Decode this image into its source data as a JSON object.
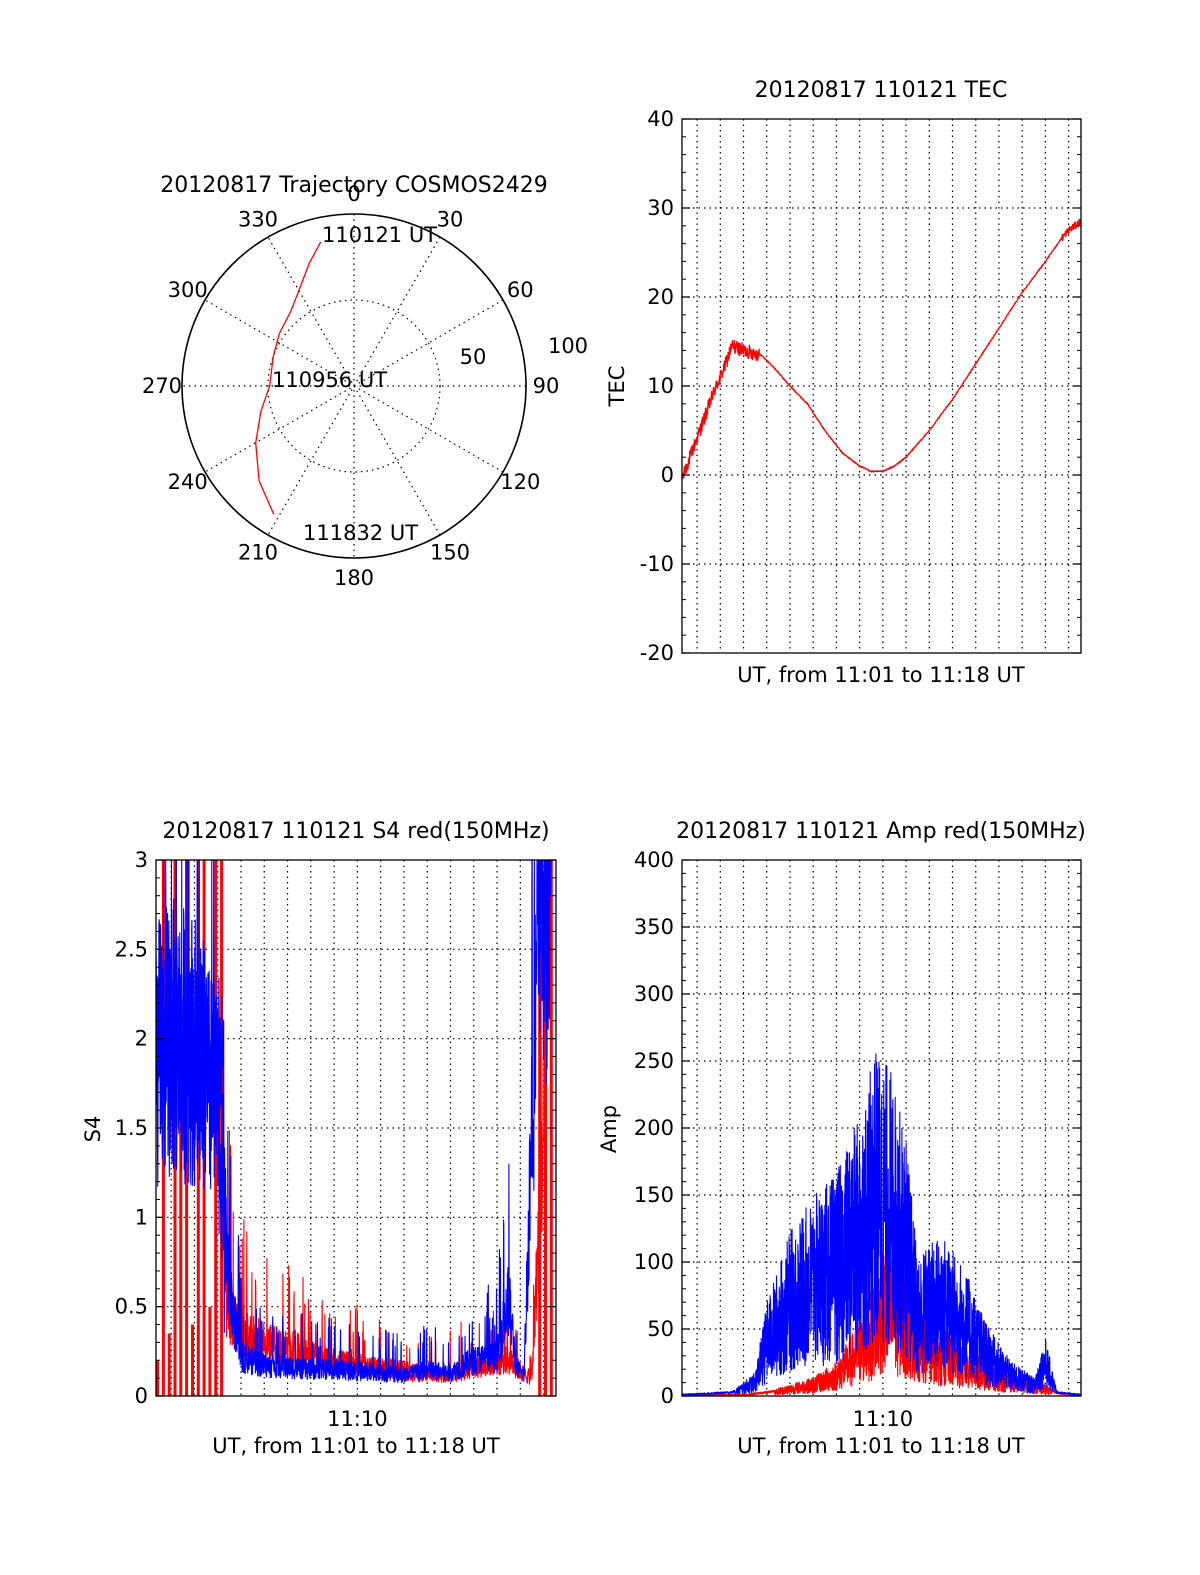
{
  "colors": {
    "red": "#ff0000",
    "blue": "#0000ff",
    "axis": "#000000",
    "background": "#ffffff"
  },
  "chart_data": [
    {
      "type": "scatter",
      "projection": "polar",
      "title": "20120817 Trajectory COSMOS2429",
      "azimuth_labels": [
        "0",
        "30",
        "60",
        "90",
        "120",
        "150",
        "180",
        "210",
        "240",
        "270",
        "300",
        "330"
      ],
      "radial_ticks": [
        "50",
        "100"
      ],
      "radial_range": [
        0,
        100
      ],
      "series": [
        {
          "color": "#ff0000",
          "azimuth_deg": [
            347,
            340,
            332,
            320,
            305,
            290,
            270,
            255,
            240,
            225,
            212
          ],
          "radius": [
            86,
            76,
            66,
            57,
            53,
            50,
            49,
            56,
            66,
            78,
            88
          ]
        }
      ],
      "annotations": [
        "110121 UT",
        "110956 UT",
        "111832 UT"
      ]
    },
    {
      "type": "line",
      "title": "20120817 110121 TEC",
      "xlabel": "UT, from 11:01 to 11:18 UT",
      "ylabel": "TEC",
      "xlim": [
        "11:01:21",
        "11:18:32"
      ],
      "ylim": [
        -20,
        40
      ],
      "yticks": [
        "-20",
        "-10",
        "0",
        "10",
        "20",
        "30",
        "40"
      ],
      "grid": true,
      "series": [
        {
          "color": "#ff0000",
          "x": [
            "11:01:21",
            "11:01:50",
            "11:02:20",
            "11:02:45",
            "11:03:10",
            "11:03:30",
            "11:04:00",
            "11:04:45",
            "11:05:20",
            "11:06:00",
            "11:06:45",
            "11:07:30",
            "11:08:15",
            "11:09:00",
            "11:09:30",
            "11:10:00",
            "11:10:30",
            "11:11:00",
            "11:12:00",
            "11:13:00",
            "11:14:00",
            "11:15:00",
            "11:16:00",
            "11:17:00",
            "11:17:40",
            "11:18:00",
            "11:18:32"
          ],
          "y": [
            -0.5,
            3.0,
            6.5,
            9.5,
            12.0,
            14.5,
            14.0,
            13.5,
            12.0,
            10.0,
            8.0,
            5.0,
            2.5,
            1.0,
            0.4,
            0.4,
            1.0,
            2.0,
            5.0,
            8.5,
            12.5,
            16.5,
            20.5,
            24.0,
            26.5,
            27.5,
            28.5
          ]
        }
      ]
    },
    {
      "type": "line",
      "title": "20120817 110121 S4 red(150MHz)",
      "xlabel": "UT, from 11:01 to 11:18 UT",
      "ylabel": "S4",
      "xlim": [
        "11:01:21",
        "11:18:32"
      ],
      "xticks": [
        "11:10"
      ],
      "ylim": [
        0,
        3
      ],
      "yticks": [
        "0",
        "0.5",
        "1",
        "1.5",
        "2",
        "2.5",
        "3"
      ],
      "grid": true,
      "series": [
        {
          "color": "#ff0000",
          "x": [
            "11:04:20",
            "11:04:50",
            "11:05:30",
            "11:06:30",
            "11:07:30",
            "11:08:30",
            "11:09:30",
            "11:10:30",
            "11:11:30",
            "11:12:30",
            "11:13:30",
            "11:14:30",
            "11:15:30",
            "11:16:30",
            "11:17:10",
            "11:17:30",
            "11:18:00"
          ],
          "y": [
            0.55,
            0.38,
            0.32,
            0.28,
            0.25,
            0.2,
            0.18,
            0.16,
            0.15,
            0.13,
            0.12,
            0.14,
            0.18,
            0.2,
            0.12,
            0.1,
            1.5
          ]
        },
        {
          "color": "#0000ff",
          "x": [
            "11:01:21",
            "11:02:00",
            "11:03:00",
            "11:04:00",
            "11:04:30",
            "11:05:00",
            "11:06:00",
            "11:07:00",
            "11:08:00",
            "11:09:00",
            "11:10:00",
            "11:11:00",
            "11:12:00",
            "11:13:00",
            "11:14:00",
            "11:15:00",
            "11:16:00",
            "11:16:30",
            "11:16:50",
            "11:17:10",
            "11:17:30",
            "11:17:50",
            "11:18:20"
          ],
          "y": [
            1.9,
            2.0,
            1.95,
            1.6,
            0.6,
            0.22,
            0.17,
            0.16,
            0.15,
            0.15,
            0.14,
            0.13,
            0.12,
            0.14,
            0.13,
            0.2,
            0.22,
            0.55,
            0.15,
            0.12,
            1.6,
            2.8,
            3.0
          ]
        }
      ]
    },
    {
      "type": "line",
      "title": "20120817 110121 Amp red(150MHz)",
      "xlabel": "UT, from 11:01 to 11:18 UT",
      "ylabel": "Amp",
      "xlim": [
        "11:01:21",
        "11:18:32"
      ],
      "xticks": [
        "11:10"
      ],
      "ylim": [
        0,
        400
      ],
      "yticks": [
        "0",
        "50",
        "100",
        "150",
        "200",
        "250",
        "300",
        "350",
        "400"
      ],
      "grid": true,
      "series": [
        {
          "color": "#ff0000",
          "x": [
            "11:01:21",
            "11:04:00",
            "11:05:00",
            "11:06:00",
            "11:07:00",
            "11:08:00",
            "11:08:45",
            "11:09:30",
            "11:10:00",
            "11:10:40",
            "11:11:20",
            "11:12:00",
            "11:13:00",
            "11:14:00",
            "11:15:00",
            "11:16:00",
            "11:17:00",
            "11:17:40",
            "11:18:32"
          ],
          "y": [
            0,
            0,
            2,
            5,
            8,
            15,
            28,
            45,
            62,
            55,
            45,
            35,
            25,
            18,
            12,
            8,
            5,
            1,
            0
          ]
        },
        {
          "color": "#0000ff",
          "x": [
            "11:01:21",
            "11:03:30",
            "11:04:30",
            "11:05:00",
            "11:06:00",
            "11:07:00",
            "11:08:00",
            "11:09:00",
            "11:09:45",
            "11:10:20",
            "11:11:00",
            "11:11:30",
            "11:12:30",
            "11:13:30",
            "11:14:30",
            "11:15:30",
            "11:16:30",
            "11:17:00",
            "11:17:30",
            "11:18:32"
          ],
          "y": [
            0,
            2,
            10,
            40,
            70,
            85,
            95,
            120,
            150,
            140,
            110,
            60,
            70,
            55,
            30,
            15,
            8,
            25,
            2,
            0
          ]
        }
      ]
    }
  ]
}
